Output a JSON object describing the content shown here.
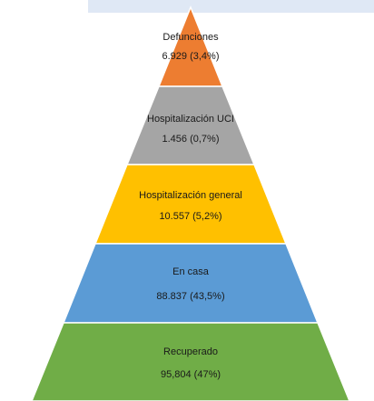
{
  "pyramid": {
    "levels": [
      {
        "name": "Defunciones",
        "value": "6.929 (3,4%)",
        "color": "#ed7d31"
      },
      {
        "name": "Hospitalización UCI",
        "value": "1.456 (0,7%)",
        "color": "#a5a5a5"
      },
      {
        "name": "Hospitalización general",
        "value": "10.557 (5,2%)",
        "color": "#ffc000"
      },
      {
        "name": "En casa",
        "value": "88.837 (43,5%)",
        "color": "#5b9bd5"
      },
      {
        "name": "Recuperado",
        "value": "95,804 (47%)",
        "color": "#70ad47"
      }
    ]
  }
}
